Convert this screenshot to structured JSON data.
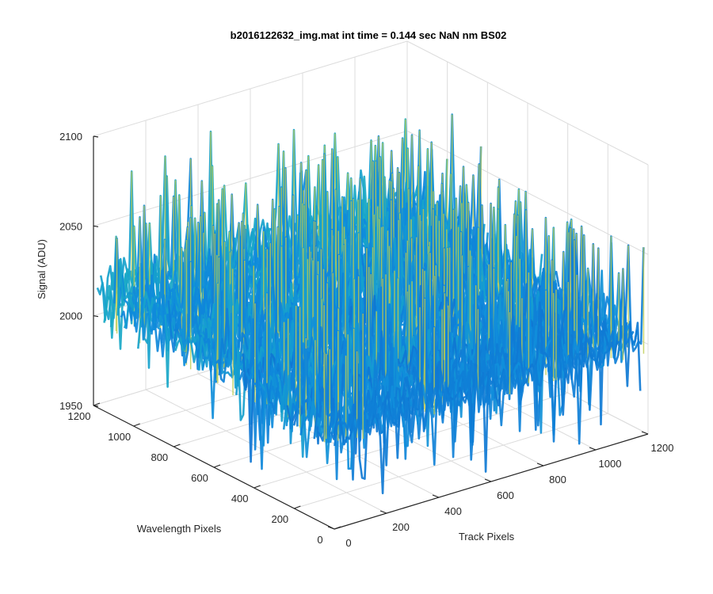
{
  "chart_data": {
    "type": "surface",
    "title": "b2016122632_img.mat int time = 0.144 sec  NaN nm BS02",
    "xlabel": "Track Pixels",
    "ylabel": "Wavelength Pixels",
    "zlabel": "Signal (ADU)",
    "xlim": [
      0,
      1200
    ],
    "ylim": [
      0,
      1200
    ],
    "zlim": [
      1950,
      2100
    ],
    "x_ticks": [
      "0",
      "200",
      "400",
      "600",
      "800",
      "1000",
      "1200"
    ],
    "y_ticks": [
      "0",
      "200",
      "400",
      "600",
      "800",
      "1000",
      "1200"
    ],
    "z_ticks": [
      "1950",
      "2000",
      "2050",
      "2100"
    ],
    "grid": true,
    "colormap": "parula",
    "approx_baseline_signal": 2000,
    "approx_noise_range": [
      1960,
      2075
    ],
    "colors": {
      "low": "#0f7fd8",
      "mid": "#1fb1c1",
      "high": "#c8c83a",
      "axis": "#262626",
      "grid": "#dcdcdc"
    }
  }
}
